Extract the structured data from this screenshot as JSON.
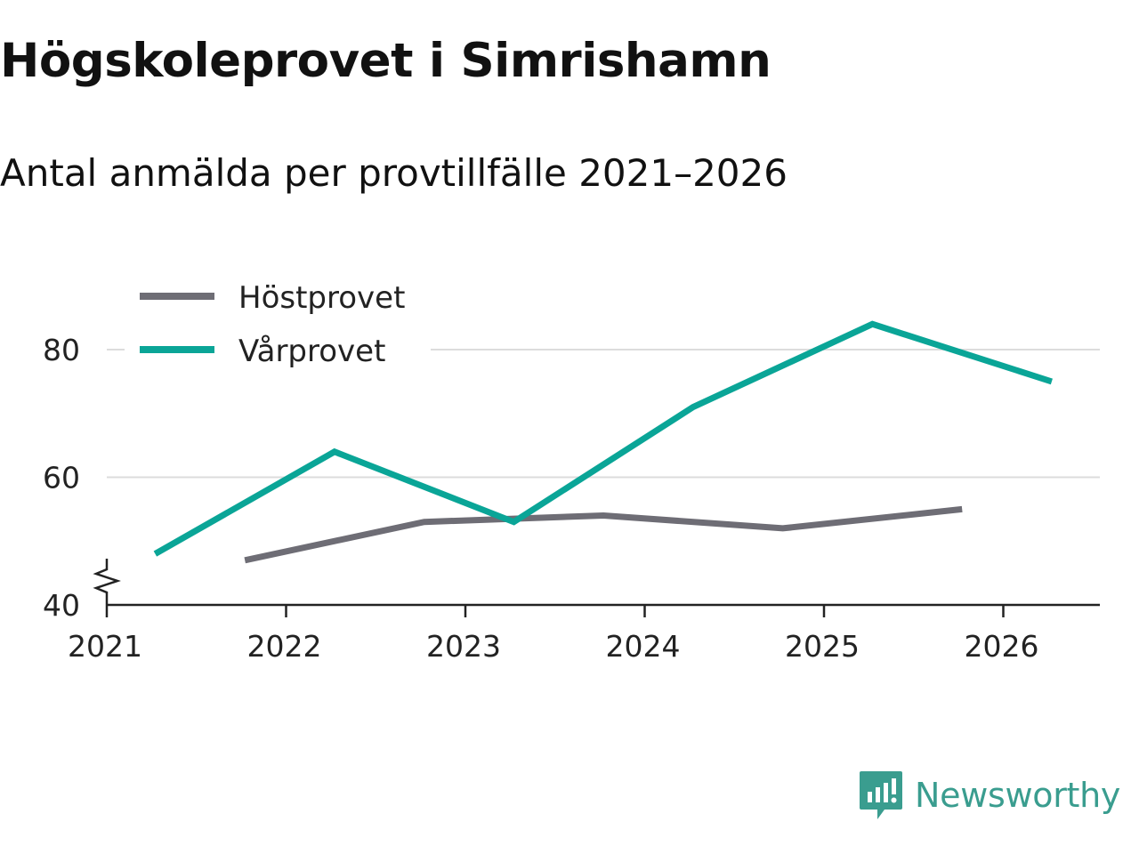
{
  "title": "Högskoleprovet i Simrishamn",
  "subtitle": "Antal anmälda per provtillfälle 2021–2026",
  "brand": {
    "name": "Newsworthy",
    "icon": "newsworthy-logo-icon",
    "color": "#3a9d8f"
  },
  "chart_data": {
    "type": "line",
    "title": "Högskoleprovet i Simrishamn",
    "subtitle": "Antal anmälda per provtillfälle 2021–2026",
    "xlabel": "",
    "ylabel": "",
    "x_ticks": [
      "2021",
      "2022",
      "2023",
      "2024",
      "2025",
      "2026"
    ],
    "y_ticks": [
      "40",
      "60",
      "80"
    ],
    "ylim": [
      40,
      90
    ],
    "y_axis_break": true,
    "grid": true,
    "legend_position": "top-left",
    "series": [
      {
        "name": "Höstprovet",
        "color": "#6e6d75",
        "points": [
          {
            "x": 2021.77,
            "y": 47
          },
          {
            "x": 2022.77,
            "y": 53
          },
          {
            "x": 2023.77,
            "y": 54
          },
          {
            "x": 2024.77,
            "y": 52
          },
          {
            "x": 2025.77,
            "y": 55
          }
        ]
      },
      {
        "name": "Vårprovet",
        "color": "#0aa597",
        "points": [
          {
            "x": 2021.27,
            "y": 48
          },
          {
            "x": 2022.27,
            "y": 64
          },
          {
            "x": 2023.27,
            "y": 53
          },
          {
            "x": 2024.27,
            "y": 71
          },
          {
            "x": 2025.27,
            "y": 84
          },
          {
            "x": 2026.27,
            "y": 75
          }
        ]
      }
    ]
  }
}
